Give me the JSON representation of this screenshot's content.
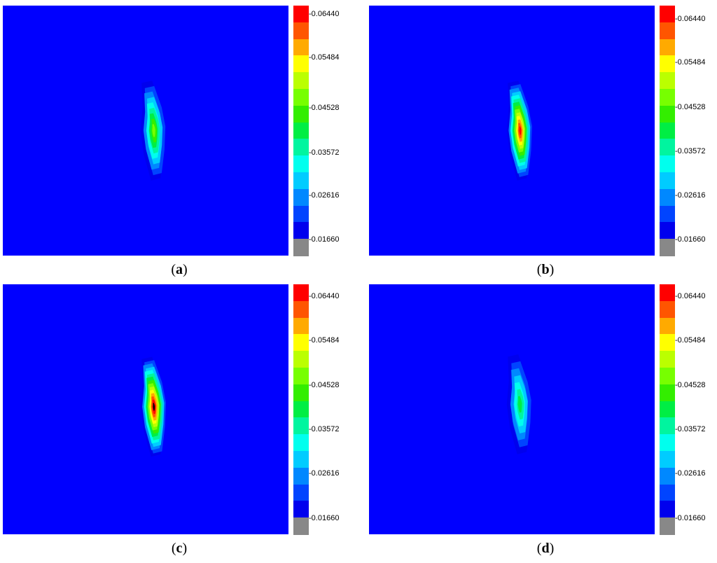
{
  "chart_data": [
    {
      "type": "heatmap",
      "panel_label": "a",
      "colorbar": {
        "ticks": [
          "0.06440",
          "0.05484",
          "0.04528",
          "0.03572",
          "0.02616",
          "0.01660"
        ],
        "levels": 15,
        "colors": [
          "#FF0000",
          "#FF5500",
          "#FFAA00",
          "#FFFF00",
          "#BBFF00",
          "#77FF00",
          "#33EE00",
          "#00EE44",
          "#00F59F",
          "#00FFEE",
          "#00CCFF",
          "#0088FF",
          "#0044FF",
          "#0000EE",
          "#888888"
        ],
        "background": "#0000FF"
      },
      "hotspot": {
        "peak_level": 8,
        "center": [
          0.54,
          0.5
        ]
      }
    },
    {
      "type": "heatmap",
      "panel_label": "b",
      "colorbar": {
        "ticks": [
          "0.06440",
          "0.05484",
          "0.04528",
          "0.03572",
          "0.02616",
          "0.01660"
        ],
        "levels": 15,
        "colors": [
          "#FF0000",
          "#FF5500",
          "#FFAA00",
          "#FFFF00",
          "#BBFF00",
          "#77FF00",
          "#33EE00",
          "#00EE44",
          "#00F59F",
          "#00FFEE",
          "#00CCFF",
          "#0088FF",
          "#0044FF",
          "#0000EE",
          "#888888"
        ],
        "background": "#0000FF"
      },
      "hotspot": {
        "peak_level": 13,
        "center": [
          0.54,
          0.5
        ]
      }
    },
    {
      "type": "heatmap",
      "panel_label": "c",
      "colorbar": {
        "ticks": [
          "0.06440",
          "0.05484",
          "0.04528",
          "0.03572",
          "0.02616",
          "0.01660"
        ],
        "levels": 15,
        "colors": [
          "#FF0000",
          "#FF5500",
          "#FFAA00",
          "#FFFF00",
          "#BBFF00",
          "#77FF00",
          "#33EE00",
          "#00EE44",
          "#00F59F",
          "#00FFEE",
          "#00CCFF",
          "#0088FF",
          "#0044FF",
          "#0000EE",
          "#888888"
        ],
        "background": "#0000FF"
      },
      "hotspot": {
        "peak_level": 14,
        "center": [
          0.54,
          0.49
        ]
      }
    },
    {
      "type": "heatmap",
      "panel_label": "d",
      "colorbar": {
        "ticks": [
          "0.06440",
          "0.05484",
          "0.04528",
          "0.03572",
          "0.02616",
          "0.01660"
        ],
        "levels": 15,
        "colors": [
          "#FF0000",
          "#FF5500",
          "#FFAA00",
          "#FFFF00",
          "#BBFF00",
          "#77FF00",
          "#33EE00",
          "#00EE44",
          "#00F59F",
          "#00FFEE",
          "#00CCFF",
          "#0088FF",
          "#0044FF",
          "#0000EE",
          "#888888"
        ],
        "background": "#0000FF"
      },
      "hotspot": {
        "peak_level": 6,
        "center": [
          0.54,
          0.48
        ]
      }
    }
  ]
}
